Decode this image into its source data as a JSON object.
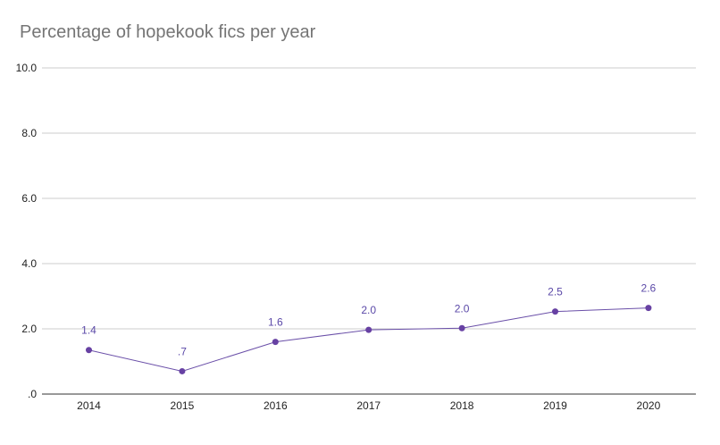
{
  "chart_data": {
    "type": "line",
    "title": "Percentage of hopekook fics per year",
    "xlabel": "",
    "ylabel": "",
    "categories": [
      "2014",
      "2015",
      "2016",
      "2017",
      "2018",
      "2019",
      "2020"
    ],
    "series": [
      {
        "values": [
          1.35,
          0.7,
          1.6,
          1.97,
          2.02,
          2.53,
          2.64
        ],
        "data_labels": [
          "1.4",
          ".7",
          "1.6",
          "2.0",
          "2.0",
          "2.5",
          "2.6"
        ]
      }
    ],
    "ylim": [
      0,
      10
    ],
    "yticks": [
      0,
      2,
      4,
      6,
      8,
      10
    ],
    "ytick_labels": [
      ".0",
      "2.0",
      "4.0",
      "6.0",
      "8.0",
      "10.0"
    ],
    "grid": true,
    "legend": "none",
    "line_color": "#6a4fa8",
    "marker_color": "#6741a3",
    "label_color": "#5b49a8"
  }
}
